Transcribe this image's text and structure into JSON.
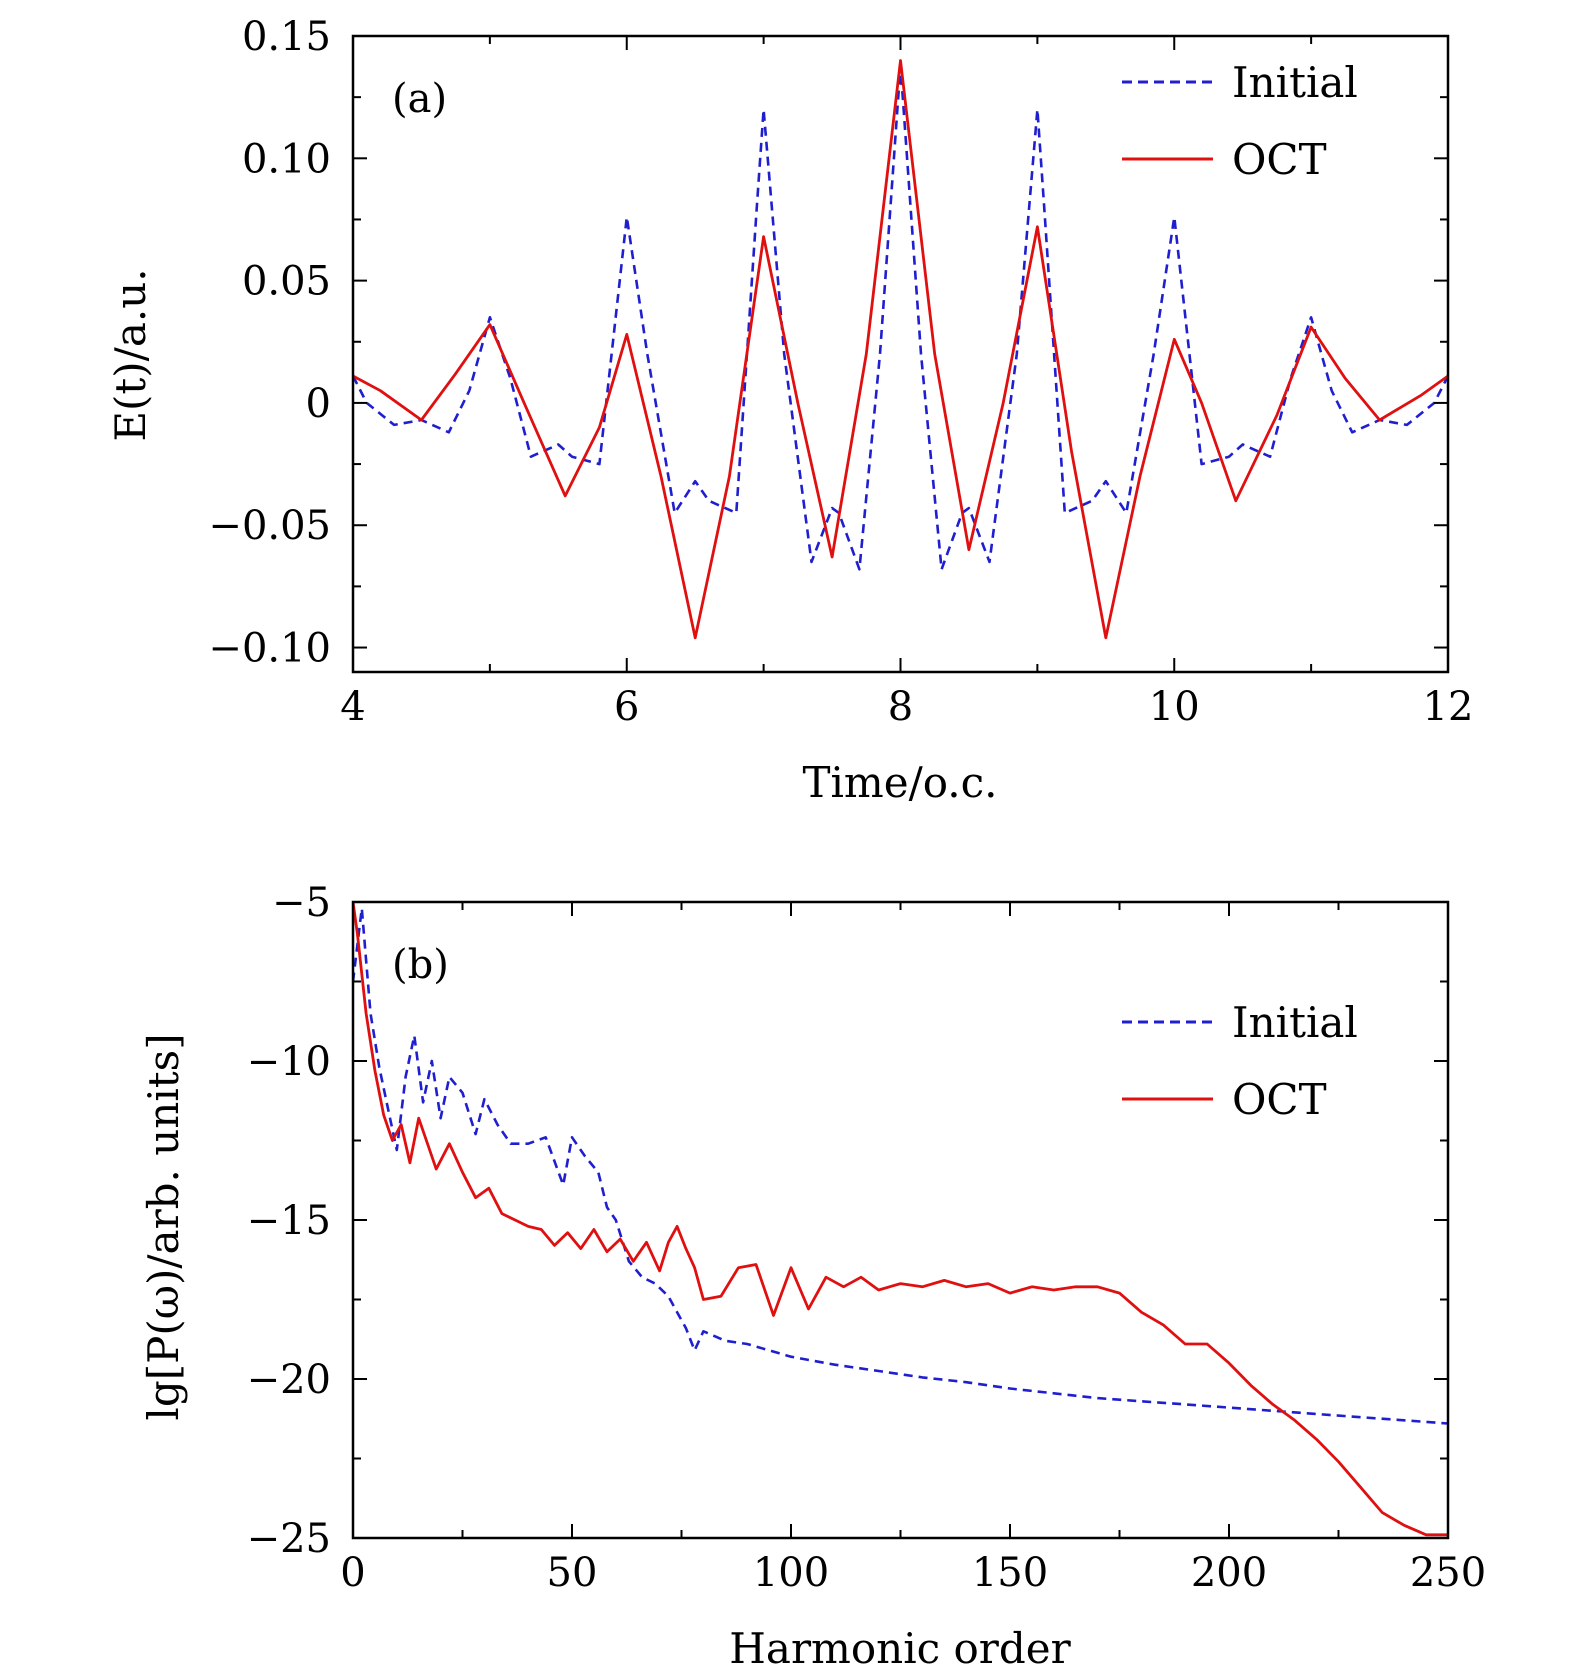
{
  "chart_data": [
    {
      "type": "line",
      "panel": "(a)",
      "xlabel": "Time/o.c.",
      "ylabel": "E(t)/a.u.",
      "xlim": [
        4,
        12
      ],
      "ylim": [
        -0.11,
        0.15
      ],
      "xticks": [
        4,
        6,
        8,
        10,
        12
      ],
      "xtick_labels": [
        "4",
        "6",
        "8",
        "10",
        "12"
      ],
      "yticks": [
        0.15,
        0.1,
        0.05,
        0,
        -0.05,
        -0.1
      ],
      "ytick_labels": [
        "0.15",
        "0.10",
        "0.05",
        "0",
        "−0.05",
        "−0.10"
      ],
      "legend_position": "top-right",
      "series": [
        {
          "name": "Initial",
          "color": "#1f1fd0",
          "style": "dashed",
          "x": [
            4.0,
            4.1,
            4.3,
            4.5,
            4.7,
            4.85,
            5.0,
            5.15,
            5.3,
            5.5,
            5.6,
            5.8,
            6.0,
            6.15,
            6.35,
            6.5,
            6.6,
            6.8,
            6.95,
            7.0,
            7.15,
            7.35,
            7.5,
            7.55,
            7.7,
            7.85,
            8.0,
            8.15,
            8.3,
            8.45,
            8.5,
            8.65,
            8.85,
            9.0,
            9.05,
            9.2,
            9.4,
            9.5,
            9.65,
            9.85,
            10.0,
            10.2,
            10.4,
            10.5,
            10.7,
            10.85,
            11.0,
            11.15,
            11.3,
            11.5,
            11.7,
            11.9,
            12.0
          ],
          "y": [
            0.011,
            0.0,
            -0.009,
            -0.007,
            -0.012,
            0.005,
            0.035,
            0.01,
            -0.022,
            -0.017,
            -0.022,
            -0.025,
            0.076,
            0.02,
            -0.045,
            -0.032,
            -0.04,
            -0.045,
            0.08,
            0.12,
            0.02,
            -0.065,
            -0.043,
            -0.045,
            -0.068,
            0.02,
            0.138,
            0.02,
            -0.068,
            -0.045,
            -0.043,
            -0.065,
            0.02,
            0.12,
            0.08,
            -0.045,
            -0.04,
            -0.032,
            -0.045,
            0.02,
            0.076,
            -0.025,
            -0.022,
            -0.017,
            -0.022,
            0.01,
            0.035,
            0.005,
            -0.012,
            -0.007,
            -0.009,
            0.0,
            0.011
          ]
        },
        {
          "name": "OCT",
          "color": "#e01010",
          "style": "solid",
          "x": [
            4.0,
            4.2,
            4.5,
            4.75,
            5.0,
            5.25,
            5.55,
            5.8,
            6.0,
            6.25,
            6.5,
            6.75,
            7.0,
            7.25,
            7.5,
            7.75,
            8.0,
            8.25,
            8.5,
            8.75,
            9.0,
            9.25,
            9.5,
            9.75,
            10.0,
            10.2,
            10.45,
            10.75,
            11.0,
            11.25,
            11.5,
            11.8,
            12.0
          ],
          "y": [
            0.011,
            0.005,
            -0.007,
            0.012,
            0.032,
            0.0,
            -0.038,
            -0.01,
            0.028,
            -0.03,
            -0.096,
            -0.03,
            0.068,
            0.0,
            -0.063,
            0.02,
            0.14,
            0.02,
            -0.06,
            0.0,
            0.072,
            -0.02,
            -0.096,
            -0.03,
            0.026,
            0.0,
            -0.04,
            -0.005,
            0.031,
            0.01,
            -0.007,
            0.003,
            0.011
          ]
        }
      ]
    },
    {
      "type": "line",
      "panel": "(b)",
      "xlabel": "Harmonic order",
      "ylabel": "lg[P(ω)/arb. units]",
      "xlim": [
        0,
        250
      ],
      "ylim": [
        -25,
        -5
      ],
      "xticks": [
        0,
        50,
        100,
        150,
        200,
        250
      ],
      "xtick_labels": [
        "0",
        "50",
        "100",
        "150",
        "200",
        "250"
      ],
      "yticks": [
        -5,
        -10,
        -15,
        -20,
        -25
      ],
      "ytick_labels": [
        "−5",
        "−10",
        "−15",
        "−20",
        "−25"
      ],
      "legend_position": "top-right",
      "series": [
        {
          "name": "Initial",
          "color": "#1f1fd0",
          "style": "dashed",
          "x": [
            0,
            2,
            4,
            6,
            8,
            10,
            12,
            14,
            16,
            18,
            20,
            22,
            25,
            28,
            30,
            33,
            36,
            40,
            44,
            48,
            50,
            53,
            56,
            58,
            60,
            63,
            66,
            69,
            72,
            74,
            76,
            78,
            80,
            85,
            90,
            100,
            110,
            120,
            130,
            140,
            150,
            160,
            170,
            180,
            190,
            200,
            210,
            220,
            230,
            240,
            250
          ],
          "y": [
            -7.5,
            -5.2,
            -8.5,
            -10.2,
            -11.5,
            -12.8,
            -10.5,
            -9.2,
            -11.3,
            -10.0,
            -11.8,
            -10.5,
            -11.0,
            -12.3,
            -11.2,
            -12.0,
            -12.6,
            -12.6,
            -12.4,
            -13.9,
            -12.4,
            -13.0,
            -13.5,
            -14.6,
            -15.0,
            -16.3,
            -16.8,
            -17.0,
            -17.4,
            -17.9,
            -18.4,
            -19.1,
            -18.5,
            -18.8,
            -18.9,
            -19.3,
            -19.55,
            -19.75,
            -19.95,
            -20.1,
            -20.3,
            -20.45,
            -20.6,
            -20.7,
            -20.8,
            -20.9,
            -21.0,
            -21.1,
            -21.2,
            -21.3,
            -21.4
          ]
        },
        {
          "name": "OCT",
          "color": "#e01010",
          "style": "solid",
          "x": [
            0,
            1,
            3,
            5,
            7,
            9,
            11,
            13,
            15,
            17,
            19,
            22,
            25,
            28,
            31,
            34,
            37,
            40,
            43,
            46,
            49,
            52,
            55,
            58,
            61,
            64,
            67,
            70,
            72,
            74,
            76,
            78,
            80,
            84,
            88,
            92,
            96,
            100,
            104,
            108,
            112,
            116,
            120,
            125,
            130,
            135,
            140,
            145,
            150,
            155,
            160,
            165,
            170,
            175,
            180,
            185,
            190,
            195,
            200,
            205,
            210,
            215,
            220,
            225,
            230,
            235,
            240,
            245,
            250
          ],
          "y": [
            -5.0,
            -6.0,
            -8.5,
            -10.3,
            -11.7,
            -12.5,
            -12.0,
            -13.2,
            -11.8,
            -12.6,
            -13.4,
            -12.6,
            -13.5,
            -14.3,
            -14.0,
            -14.8,
            -15.0,
            -15.2,
            -15.3,
            -15.8,
            -15.4,
            -15.9,
            -15.3,
            -16.0,
            -15.6,
            -16.3,
            -15.7,
            -16.6,
            -15.7,
            -15.2,
            -15.9,
            -16.5,
            -17.5,
            -17.4,
            -16.5,
            -16.4,
            -18.0,
            -16.5,
            -17.8,
            -16.8,
            -17.1,
            -16.8,
            -17.2,
            -17.0,
            -17.1,
            -16.9,
            -17.1,
            -17.0,
            -17.3,
            -17.1,
            -17.2,
            -17.1,
            -17.1,
            -17.3,
            -17.9,
            -18.3,
            -18.9,
            -18.9,
            -19.5,
            -20.2,
            -20.8,
            -21.3,
            -21.9,
            -22.6,
            -23.4,
            -24.2,
            -24.6,
            -24.9,
            -24.9
          ]
        }
      ]
    }
  ]
}
